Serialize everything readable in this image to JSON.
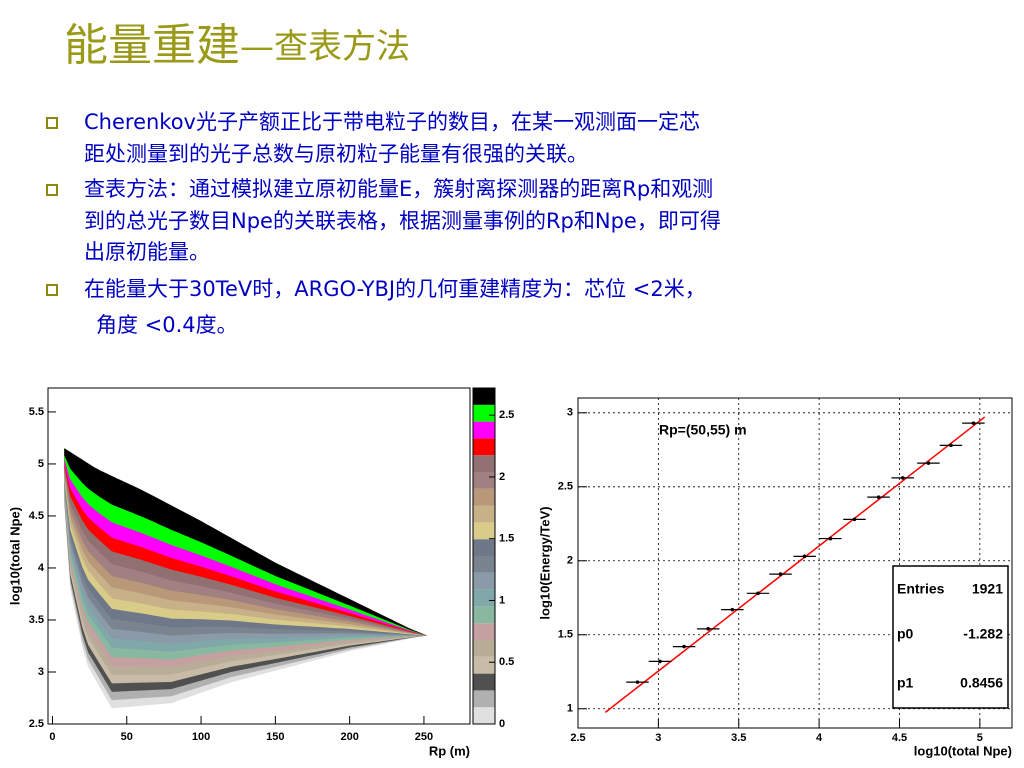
{
  "title": [
    "能量重建",
    "—查表方法"
  ],
  "bullets": [
    [
      "Cherenkov光子产额正比于带电粒子的数目，在某一观测面一定芯",
      "距处测量到的光子总数与原初粒子能量有很强的关联。"
    ],
    [
      "查表方法：通过模拟建立原初能量E，簇射离探测器的距离Rp和观测",
      "到的总光子数目Npe的关联表格，根据测量事例的Rp和Npe，即可得",
      "出原初能量。"
    ],
    [
      "在能量大于30TeV时，ARGO-YBJ的几何重建精度为：芯位 <2米，",
      "角度 <0.4度。"
    ]
  ],
  "chart_data": [
    {
      "type": "contour",
      "xlabel": "Rp (m)",
      "ylabel": "log10(total Npe)",
      "xlim": [
        -3,
        281
      ],
      "ylim": [
        2.5,
        5.73
      ],
      "xticks": [
        0,
        50,
        100,
        150,
        200,
        250
      ],
      "yticks": [
        2.5,
        3,
        3.5,
        4,
        4.5,
        5,
        5.5
      ],
      "colorbar": {
        "zlim": [
          0,
          2.72
        ],
        "zticks": [
          0,
          0.5,
          1,
          1.5,
          2,
          2.5
        ],
        "colors": [
          "#e0e0e0",
          "#b0b0b0",
          "#505050",
          "#c8bca8",
          "#b8ae98",
          "#c4a0a0",
          "#88b8a0",
          "#80a8a8",
          "#8a9aa8",
          "#7a8490",
          "#6e7888",
          "#d8cc88",
          "#c8b088",
          "#b89878",
          "#a08080",
          "#907070",
          "#ff0000",
          "#ff00ff",
          "#00ff00",
          "#000000"
        ]
      }
    },
    {
      "type": "scatter",
      "xlabel": "log10(total Npe)",
      "ylabel": "log10(Energy/TeV)",
      "xlim": [
        2.5,
        5.2
      ],
      "ylim": [
        0.87,
        3.1
      ],
      "xticks": [
        2.5,
        3,
        3.5,
        4,
        4.5,
        5
      ],
      "yticks": [
        1,
        1.5,
        2,
        2.5,
        3
      ],
      "grid": true,
      "x": [
        2.87,
        3.01,
        3.16,
        3.31,
        3.46,
        3.62,
        3.76,
        3.91,
        4.07,
        4.22,
        4.37,
        4.52,
        4.68,
        4.82,
        4.96
      ],
      "y": [
        1.18,
        1.32,
        1.42,
        1.54,
        1.67,
        1.78,
        1.91,
        2.03,
        2.15,
        2.28,
        2.43,
        2.56,
        2.66,
        2.78,
        2.93
      ],
      "xerr": [
        0.07,
        0.07,
        0.07,
        0.07,
        0.07,
        0.07,
        0.07,
        0.07,
        0.07,
        0.07,
        0.07,
        0.07,
        0.07,
        0.07,
        0.07
      ],
      "color": "#000000",
      "annotation": "Rp=(50,55) m",
      "fit": {
        "p0_label": "p0",
        "p0": -1.282,
        "p1_label": "p1",
        "p1": 0.8456,
        "xrange": [
          2.67,
          5.03
        ],
        "color": "#ff0000"
      },
      "stats": {
        "entries_label": "Entries",
        "entries": 1921
      }
    }
  ]
}
